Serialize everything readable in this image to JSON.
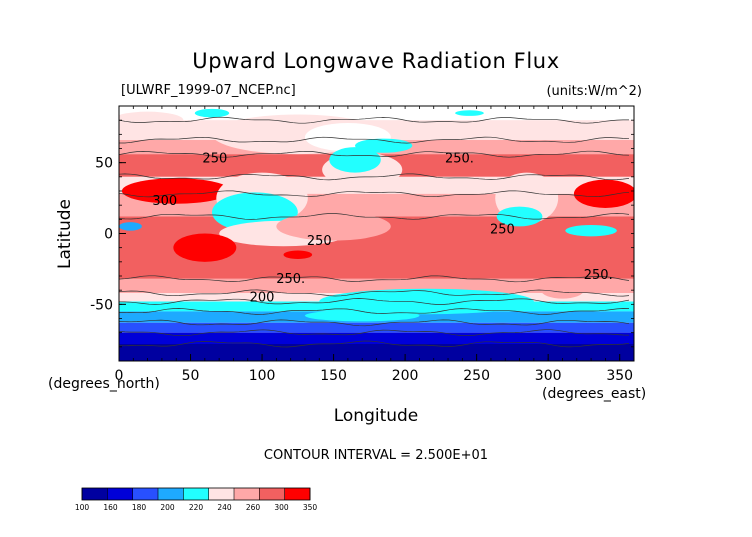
{
  "chart_data": {
    "type": "heatmap",
    "title": "Upward Longwave Radiation Flux",
    "file_label": "[ULWRF_1999-07_NCEP.nc]",
    "units_label": "(units:W/m^2)",
    "xlabel": "Longitude",
    "ylabel": "Latitude",
    "x_unit_note": "(degrees_east)",
    "y_unit_note": "(degrees_north)",
    "xlim": [
      0,
      360
    ],
    "ylim": [
      -90,
      90
    ],
    "x_ticks": [
      "0",
      "50",
      "100",
      "150",
      "200",
      "250",
      "300",
      "350"
    ],
    "y_ticks": [
      "50",
      "0",
      "-50"
    ],
    "contour_interval": "CONTOUR INTERVAL = 2.500E+01",
    "contour_labels": [
      {
        "lon": 67,
        "lat": 50,
        "text": "250"
      },
      {
        "lon": 238,
        "lat": 50,
        "text": "250."
      },
      {
        "lon": 32,
        "lat": 20,
        "text": "300"
      },
      {
        "lon": 140,
        "lat": -8,
        "text": "250"
      },
      {
        "lon": 268,
        "lat": 0,
        "text": "250"
      },
      {
        "lon": 120,
        "lat": -35,
        "text": "250."
      },
      {
        "lon": 335,
        "lat": -32,
        "text": "250."
      },
      {
        "lon": 100,
        "lat": -48,
        "text": "200"
      }
    ],
    "colorbar": {
      "labels": [
        "100",
        "160",
        "180",
        "200",
        "220",
        "240",
        "260",
        "300",
        "350"
      ],
      "colors": [
        "#0000a0",
        "#0000d8",
        "#2850ff",
        "#1eaaff",
        "#22ffff",
        "#ffe4e4",
        "#ffa8a8",
        "#f26060",
        "#ff0000"
      ]
    },
    "bands": [
      {
        "lat_top": 90,
        "lat_bottom": 80,
        "color": "#ffffff"
      },
      {
        "lat_top": 80,
        "lat_bottom": 66,
        "color": "#ffe4e4"
      },
      {
        "lat_top": 66,
        "lat_bottom": 56,
        "color": "#ffa8a8"
      },
      {
        "lat_top": 56,
        "lat_bottom": 40,
        "color": "#f26060"
      },
      {
        "lat_top": 40,
        "lat_bottom": 28,
        "color": "#ffe4e4"
      },
      {
        "lat_top": 28,
        "lat_bottom": 12,
        "color": "#ffa8a8"
      },
      {
        "lat_top": 12,
        "lat_bottom": -32,
        "color": "#f26060"
      },
      {
        "lat_top": -32,
        "lat_bottom": -42,
        "color": "#ffa8a8"
      },
      {
        "lat_top": -42,
        "lat_bottom": -48,
        "color": "#ffe4e4"
      },
      {
        "lat_top": -48,
        "lat_bottom": -55,
        "color": "#22ffff"
      },
      {
        "lat_top": -55,
        "lat_bottom": -63,
        "color": "#1eaaff"
      },
      {
        "lat_top": -63,
        "lat_bottom": -70,
        "color": "#2850ff"
      },
      {
        "lat_top": -70,
        "lat_bottom": -78,
        "color": "#0000d8"
      },
      {
        "lat_top": -78,
        "lat_bottom": -90,
        "color": "#0000a0"
      }
    ],
    "patches": [
      {
        "lon": 125,
        "lat": 70,
        "rlon": 60,
        "rlat": 14,
        "color": "#ffe4e4"
      },
      {
        "lon": 160,
        "lat": 68,
        "rlon": 30,
        "rlat": 10,
        "color": "#ffffff"
      },
      {
        "lon": 20,
        "lat": 80,
        "rlon": 25,
        "rlat": 6,
        "color": "#ffe4e4"
      },
      {
        "lon": 40,
        "lat": 30,
        "rlon": 38,
        "rlat": 9,
        "color": "#ff0000"
      },
      {
        "lon": 340,
        "lat": 28,
        "rlon": 22,
        "rlat": 10,
        "color": "#ff0000"
      },
      {
        "lon": 100,
        "lat": 25,
        "rlon": 32,
        "rlat": 18,
        "color": "#ffe4e4"
      },
      {
        "lon": 95,
        "lat": 15,
        "rlon": 30,
        "rlat": 14,
        "color": "#22ffff"
      },
      {
        "lon": 115,
        "lat": 0,
        "rlon": 45,
        "rlat": 9,
        "color": "#ffe4e4"
      },
      {
        "lon": 150,
        "lat": 5,
        "rlon": 40,
        "rlat": 10,
        "color": "#ffa8a8"
      },
      {
        "lon": 170,
        "lat": 45,
        "rlon": 28,
        "rlat": 12,
        "color": "#ffe4e4"
      },
      {
        "lon": 165,
        "lat": 52,
        "rlon": 18,
        "rlat": 9,
        "color": "#22ffff"
      },
      {
        "lon": 185,
        "lat": 62,
        "rlon": 20,
        "rlat": 5,
        "color": "#22ffff"
      },
      {
        "lon": 65,
        "lat": 85,
        "rlon": 12,
        "rlat": 3,
        "color": "#22ffff"
      },
      {
        "lon": 245,
        "lat": 85,
        "rlon": 10,
        "rlat": 2,
        "color": "#22ffff"
      },
      {
        "lon": 285,
        "lat": 25,
        "rlon": 22,
        "rlat": 18,
        "color": "#ffe4e4"
      },
      {
        "lon": 280,
        "lat": 12,
        "rlon": 16,
        "rlat": 7,
        "color": "#22ffff"
      },
      {
        "lon": 330,
        "lat": 2,
        "rlon": 18,
        "rlat": 4,
        "color": "#22ffff"
      },
      {
        "lon": 8,
        "lat": 5,
        "rlon": 8,
        "rlat": 3,
        "color": "#1eaaff"
      },
      {
        "lon": 60,
        "lat": -10,
        "rlon": 22,
        "rlat": 10,
        "color": "#ff0000"
      },
      {
        "lon": 125,
        "lat": -15,
        "rlon": 10,
        "rlat": 3,
        "color": "#ff0000"
      },
      {
        "lon": 215,
        "lat": -48,
        "rlon": 75,
        "rlat": 9,
        "color": "#22ffff"
      },
      {
        "lon": 310,
        "lat": -40,
        "rlon": 15,
        "rlat": 6,
        "color": "#ffa8a8"
      },
      {
        "lon": 170,
        "lat": -58,
        "rlon": 40,
        "rlat": 4,
        "color": "#22ffff"
      }
    ]
  }
}
